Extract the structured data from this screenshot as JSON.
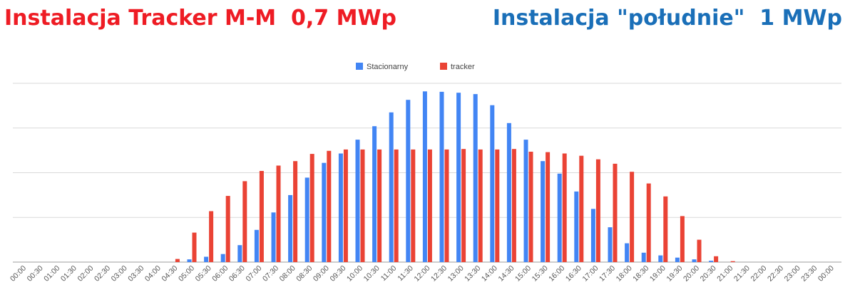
{
  "titles": {
    "left": "Instalacja Tracker M-M  0,7 MWp",
    "right": "Instalacja \"południe\"  1 MWp",
    "left_color": "#ee1c24",
    "right_color": "#1a6fb8"
  },
  "chart_data": {
    "type": "bar",
    "title": "",
    "xlabel": "",
    "ylabel": "",
    "ylim": [
      0,
      4
    ],
    "grid": true,
    "legend_position": "top-center",
    "categories": [
      "00:00",
      "00:30",
      "01:00",
      "01:30",
      "02:00",
      "02:30",
      "03:00",
      "03:30",
      "04:00",
      "04:30",
      "05:00",
      "05:30",
      "06:00",
      "06:30",
      "07:00",
      "07:30",
      "08:00",
      "08:30",
      "09:00",
      "09:30",
      "10:00",
      "10:30",
      "11:00",
      "11:30",
      "12:00",
      "12:30",
      "13:00",
      "13:30",
      "14:00",
      "14:30",
      "15:00",
      "15:30",
      "16:00",
      "16:30",
      "17:00",
      "17:30",
      "18:00",
      "18:30",
      "19:00",
      "19:30",
      "20:00",
      "20:30",
      "21:00",
      "21:30",
      "22:00",
      "22:30",
      "23:00",
      "23:30",
      "00:00"
    ],
    "series": [
      {
        "name": "Stacionarny",
        "color": "#4285f4",
        "values": [
          0,
          0,
          0,
          0,
          0,
          0,
          0,
          0,
          0,
          0,
          0.06,
          0.12,
          0.18,
          0.38,
          0.72,
          1.11,
          1.5,
          1.89,
          2.22,
          2.43,
          2.74,
          3.04,
          3.35,
          3.63,
          3.82,
          3.81,
          3.79,
          3.76,
          3.51,
          3.11,
          2.74,
          2.26,
          1.98,
          1.58,
          1.19,
          0.78,
          0.42,
          0.21,
          0.15,
          0.1,
          0.06,
          0.03,
          0,
          0,
          0,
          0,
          0,
          0,
          0
        ]
      },
      {
        "name": "tracker",
        "color": "#ea4335",
        "values": [
          0,
          0,
          0,
          0,
          0,
          0,
          0,
          0,
          0,
          0.07,
          0.66,
          1.14,
          1.48,
          1.81,
          2.04,
          2.16,
          2.26,
          2.42,
          2.49,
          2.52,
          2.52,
          2.52,
          2.52,
          2.52,
          2.52,
          2.52,
          2.53,
          2.52,
          2.52,
          2.53,
          2.47,
          2.46,
          2.43,
          2.38,
          2.3,
          2.2,
          2.02,
          1.76,
          1.47,
          1.03,
          0.5,
          0.13,
          0.02,
          0,
          0,
          0,
          0,
          0,
          0
        ]
      }
    ]
  }
}
